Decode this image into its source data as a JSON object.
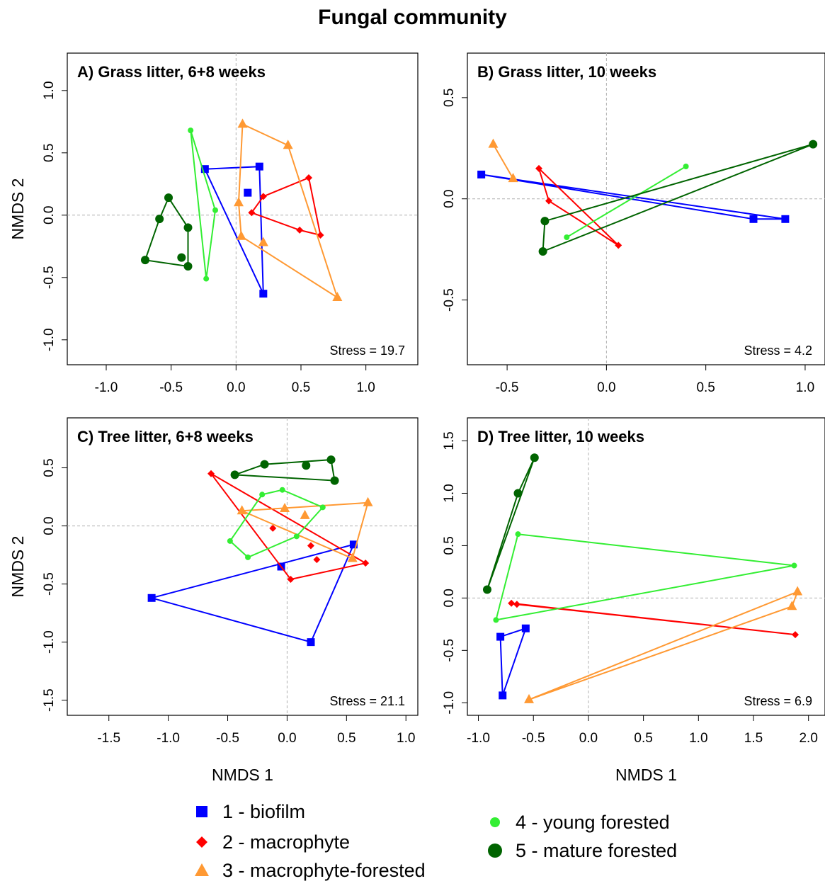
{
  "title": "Fungal community",
  "colors": {
    "biofilm": "#0000ff",
    "macrophyte": "#ff0000",
    "macrophyte_forested": "#ff9933",
    "young_forested": "#33ee33",
    "mature_forested": "#006400",
    "reference_line": "#b0b0b0"
  },
  "legend": [
    {
      "key": "biofilm",
      "label": "1 - biofilm",
      "marker": "square"
    },
    {
      "key": "macrophyte",
      "label": "2 - macrophyte",
      "marker": "diamond"
    },
    {
      "key": "macrophyte_forested",
      "label": "3 - macrophyte-forested",
      "marker": "triangle"
    },
    {
      "key": "young_forested",
      "label": "4 - young forested",
      "marker": "small-circle"
    },
    {
      "key": "mature_forested",
      "label": "5 - mature forested",
      "marker": "circle"
    }
  ],
  "chart_data": [
    {
      "type": "scatter",
      "title": "A) Grass litter, 6+8 weeks",
      "xlabel": "",
      "ylabel": "NMDS 2",
      "xlim": [
        -1.3,
        1.4
      ],
      "ylim": [
        -1.2,
        1.3
      ],
      "xticks": [
        "-1.0",
        "-0.5",
        "0.0",
        "0.5",
        "1.0"
      ],
      "yticks": [
        "-1.0",
        "-0.5",
        "0.0",
        "0.5",
        "1.0"
      ],
      "stress": "Stress = 19.7",
      "series": [
        {
          "key": "biofilm",
          "points": [
            [
              -0.24,
              0.37
            ],
            [
              0.18,
              0.39
            ],
            [
              0.21,
              -0.63
            ],
            [
              0.09,
              0.18
            ]
          ],
          "hull": [
            [
              -0.24,
              0.37
            ],
            [
              0.18,
              0.39
            ],
            [
              0.21,
              -0.63
            ]
          ]
        },
        {
          "key": "macrophyte",
          "points": [
            [
              0.56,
              0.3
            ],
            [
              0.65,
              -0.16
            ],
            [
              0.49,
              -0.12
            ],
            [
              0.12,
              0.02
            ],
            [
              0.21,
              0.15
            ]
          ],
          "hull": [
            [
              0.21,
              0.15
            ],
            [
              0.56,
              0.3
            ],
            [
              0.65,
              -0.16
            ],
            [
              0.49,
              -0.12
            ],
            [
              0.12,
              0.02
            ]
          ]
        },
        {
          "key": "macrophyte_forested",
          "points": [
            [
              0.05,
              0.73
            ],
            [
              0.4,
              0.56
            ],
            [
              0.78,
              -0.66
            ],
            [
              0.04,
              -0.17
            ],
            [
              0.02,
              0.1
            ],
            [
              0.21,
              -0.22
            ]
          ],
          "hull": [
            [
              0.05,
              0.73
            ],
            [
              0.4,
              0.56
            ],
            [
              0.78,
              -0.66
            ],
            [
              0.04,
              -0.17
            ],
            [
              0.02,
              0.1
            ]
          ]
        },
        {
          "key": "young_forested",
          "points": [
            [
              -0.35,
              0.68
            ],
            [
              -0.16,
              0.04
            ],
            [
              -0.23,
              -0.51
            ]
          ],
          "hull": [
            [
              -0.35,
              0.68
            ],
            [
              -0.16,
              0.04
            ],
            [
              -0.23,
              -0.51
            ]
          ]
        },
        {
          "key": "mature_forested",
          "points": [
            [
              -0.52,
              0.14
            ],
            [
              -0.37,
              -0.1
            ],
            [
              -0.37,
              -0.41
            ],
            [
              -0.7,
              -0.36
            ],
            [
              -0.59,
              -0.03
            ],
            [
              -0.42,
              -0.34
            ]
          ],
          "hull": [
            [
              -0.52,
              0.14
            ],
            [
              -0.37,
              -0.1
            ],
            [
              -0.37,
              -0.41
            ],
            [
              -0.7,
              -0.36
            ],
            [
              -0.59,
              -0.03
            ]
          ]
        }
      ]
    },
    {
      "type": "scatter",
      "title": "B) Grass litter, 10 weeks",
      "xlabel": "",
      "ylabel": "",
      "xlim": [
        -0.7,
        1.1
      ],
      "ylim": [
        -0.82,
        0.72
      ],
      "xticks": [
        "-0.5",
        "0.0",
        "0.5",
        "1.0"
      ],
      "yticks": [
        "-0.5",
        "0.0",
        "0.5"
      ],
      "stress": "Stress = 4.2",
      "series": [
        {
          "key": "biofilm",
          "points": [
            [
              -0.63,
              0.12
            ],
            [
              0.74,
              -0.1
            ],
            [
              0.9,
              -0.1
            ]
          ],
          "hull": [
            [
              -0.63,
              0.12
            ],
            [
              0.9,
              -0.1
            ],
            [
              0.74,
              -0.1
            ]
          ]
        },
        {
          "key": "macrophyte",
          "points": [
            [
              -0.34,
              0.15
            ],
            [
              0.06,
              -0.23
            ],
            [
              -0.29,
              -0.01
            ]
          ],
          "hull": [
            [
              -0.34,
              0.15
            ],
            [
              0.06,
              -0.23
            ],
            [
              -0.29,
              -0.01
            ]
          ]
        },
        {
          "key": "macrophyte_forested",
          "points": [
            [
              -0.57,
              0.27
            ],
            [
              -0.47,
              0.1
            ]
          ],
          "hull": [
            [
              -0.57,
              0.27
            ],
            [
              -0.47,
              0.1
            ]
          ]
        },
        {
          "key": "young_forested",
          "points": [
            [
              0.4,
              0.16
            ],
            [
              -0.2,
              -0.19
            ]
          ],
          "hull": [
            [
              0.4,
              0.16
            ],
            [
              -0.2,
              -0.19
            ]
          ]
        },
        {
          "key": "mature_forested",
          "points": [
            [
              1.04,
              0.27
            ],
            [
              -0.31,
              -0.11
            ],
            [
              -0.32,
              -0.26
            ]
          ],
          "hull": [
            [
              1.04,
              0.27
            ],
            [
              -0.31,
              -0.11
            ],
            [
              -0.32,
              -0.26
            ]
          ]
        }
      ]
    },
    {
      "type": "scatter",
      "title": "C) Tree litter, 6+8 weeks",
      "xlabel": "NMDS 1",
      "ylabel": "NMDS 2",
      "xlim": [
        -1.85,
        1.1
      ],
      "ylim": [
        -1.63,
        0.93
      ],
      "xticks": [
        "-1.5",
        "-1.0",
        "-0.5",
        "0.0",
        "0.5",
        "1.0"
      ],
      "yticks": [
        "-1.5",
        "-1.0",
        "-0.5",
        "0.0",
        "0.5"
      ],
      "stress": "Stress = 21.1",
      "series": [
        {
          "key": "biofilm",
          "points": [
            [
              -1.14,
              -0.62
            ],
            [
              0.56,
              -0.16
            ],
            [
              0.2,
              -1.0
            ],
            [
              -0.05,
              -0.35
            ]
          ],
          "hull": [
            [
              -1.14,
              -0.62
            ],
            [
              0.56,
              -0.16
            ],
            [
              0.2,
              -1.0
            ]
          ]
        },
        {
          "key": "macrophyte",
          "points": [
            [
              -0.64,
              0.45
            ],
            [
              0.66,
              -0.32
            ],
            [
              0.03,
              -0.46
            ],
            [
              -0.12,
              -0.02
            ],
            [
              0.25,
              -0.29
            ],
            [
              0.2,
              -0.17
            ]
          ],
          "hull": [
            [
              -0.64,
              0.45
            ],
            [
              0.66,
              -0.32
            ],
            [
              0.03,
              -0.46
            ]
          ]
        },
        {
          "key": "macrophyte_forested",
          "points": [
            [
              -0.38,
              0.13
            ],
            [
              0.68,
              0.2
            ],
            [
              0.55,
              -0.28
            ],
            [
              -0.02,
              0.15
            ],
            [
              0.15,
              0.09
            ]
          ],
          "hull": [
            [
              -0.38,
              0.13
            ],
            [
              0.68,
              0.2
            ],
            [
              0.55,
              -0.28
            ]
          ]
        },
        {
          "key": "young_forested",
          "points": [
            [
              -0.48,
              -0.13
            ],
            [
              -0.33,
              -0.27
            ],
            [
              0.08,
              -0.09
            ],
            [
              0.3,
              0.16
            ],
            [
              -0.04,
              0.31
            ],
            [
              -0.21,
              0.27
            ]
          ],
          "hull": [
            [
              -0.48,
              -0.13
            ],
            [
              -0.33,
              -0.27
            ],
            [
              0.08,
              -0.09
            ],
            [
              0.3,
              0.16
            ],
            [
              -0.04,
              0.31
            ],
            [
              -0.21,
              0.27
            ]
          ]
        },
        {
          "key": "mature_forested",
          "points": [
            [
              -0.44,
              0.44
            ],
            [
              -0.19,
              0.53
            ],
            [
              0.37,
              0.57
            ],
            [
              0.4,
              0.39
            ],
            [
              0.16,
              0.52
            ]
          ],
          "hull": [
            [
              -0.44,
              0.44
            ],
            [
              -0.19,
              0.53
            ],
            [
              0.37,
              0.57
            ],
            [
              0.4,
              0.39
            ]
          ]
        }
      ]
    },
    {
      "type": "scatter",
      "title": "D) Tree litter, 10 weeks",
      "xlabel": "NMDS 1",
      "ylabel": "",
      "xlim": [
        -1.1,
        2.15
      ],
      "ylim": [
        -1.12,
        1.72
      ],
      "xticks": [
        "-1.0",
        "-0.5",
        "0.0",
        "0.5",
        "1.0",
        "1.5",
        "2.0"
      ],
      "yticks": [
        "-1.0",
        "-0.5",
        "0.0",
        "0.5",
        "1.0",
        "1.5"
      ],
      "stress": "Stress = 6.9",
      "series": [
        {
          "key": "biofilm",
          "points": [
            [
              -0.8,
              -0.37
            ],
            [
              -0.57,
              -0.29
            ],
            [
              -0.78,
              -0.93
            ]
          ],
          "hull": [
            [
              -0.8,
              -0.37
            ],
            [
              -0.57,
              -0.29
            ],
            [
              -0.78,
              -0.93
            ]
          ]
        },
        {
          "key": "macrophyte",
          "points": [
            [
              -0.7,
              -0.05
            ],
            [
              -0.65,
              -0.06
            ],
            [
              1.88,
              -0.35
            ]
          ],
          "hull": [
            [
              -0.7,
              -0.05
            ],
            [
              1.88,
              -0.35
            ],
            [
              -0.65,
              -0.06
            ]
          ]
        },
        {
          "key": "macrophyte_forested",
          "points": [
            [
              1.9,
              0.06
            ],
            [
              1.85,
              -0.08
            ],
            [
              -0.54,
              -0.97
            ]
          ],
          "hull": [
            [
              1.9,
              0.06
            ],
            [
              1.85,
              -0.08
            ],
            [
              -0.54,
              -0.97
            ]
          ]
        },
        {
          "key": "young_forested",
          "points": [
            [
              -0.64,
              0.61
            ],
            [
              1.87,
              0.31
            ],
            [
              -0.84,
              -0.21
            ]
          ],
          "hull": [
            [
              -0.64,
              0.61
            ],
            [
              1.87,
              0.31
            ],
            [
              -0.84,
              -0.21
            ]
          ]
        },
        {
          "key": "mature_forested",
          "points": [
            [
              -0.92,
              0.08
            ],
            [
              -0.64,
              1.0
            ],
            [
              -0.49,
              1.34
            ]
          ],
          "hull": [
            [
              -0.92,
              0.08
            ],
            [
              -0.49,
              1.34
            ],
            [
              -0.64,
              1.0
            ]
          ]
        }
      ]
    }
  ]
}
